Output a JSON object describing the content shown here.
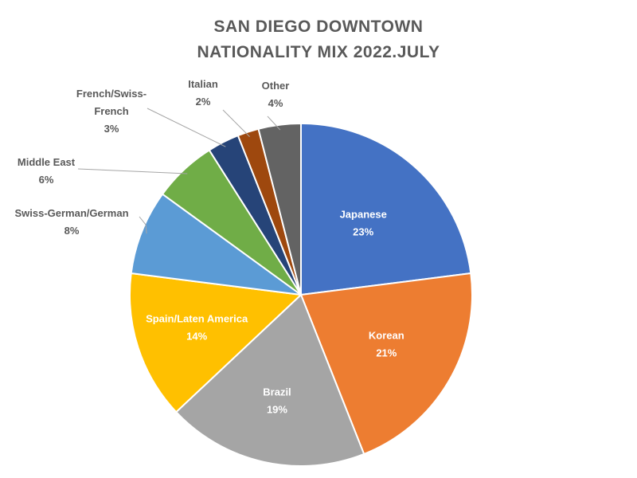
{
  "chart_data": {
    "type": "pie",
    "title_lines": [
      "SAN DIEGO DOWNTOWN",
      "NATIONALITY MIX 2022.JULY"
    ],
    "slices": [
      {
        "name": "Japanese",
        "value": 23,
        "label": "23%",
        "color": "#4472c4"
      },
      {
        "name": "Korean",
        "value": 21,
        "label": "21%",
        "color": "#ed7d31"
      },
      {
        "name": "Brazil",
        "value": 19,
        "label": "19%",
        "color": "#a5a5a5"
      },
      {
        "name": "Spain/Laten America",
        "value": 14,
        "label": "14%",
        "color": "#ffc000"
      },
      {
        "name": "Swiss-German/German",
        "value": 8,
        "label": "8%",
        "color": "#5b9bd5"
      },
      {
        "name": "Middle East",
        "value": 6,
        "label": "6%",
        "color": "#70ad47"
      },
      {
        "name": "French/Swiss-French",
        "value": 3,
        "label": "3%",
        "color": "#264478"
      },
      {
        "name": "Italian",
        "value": 2,
        "label": "2%",
        "color": "#9e480e"
      },
      {
        "name": "Other",
        "value": 4,
        "label": "4%",
        "color": "#636363"
      }
    ],
    "legend": "none"
  }
}
